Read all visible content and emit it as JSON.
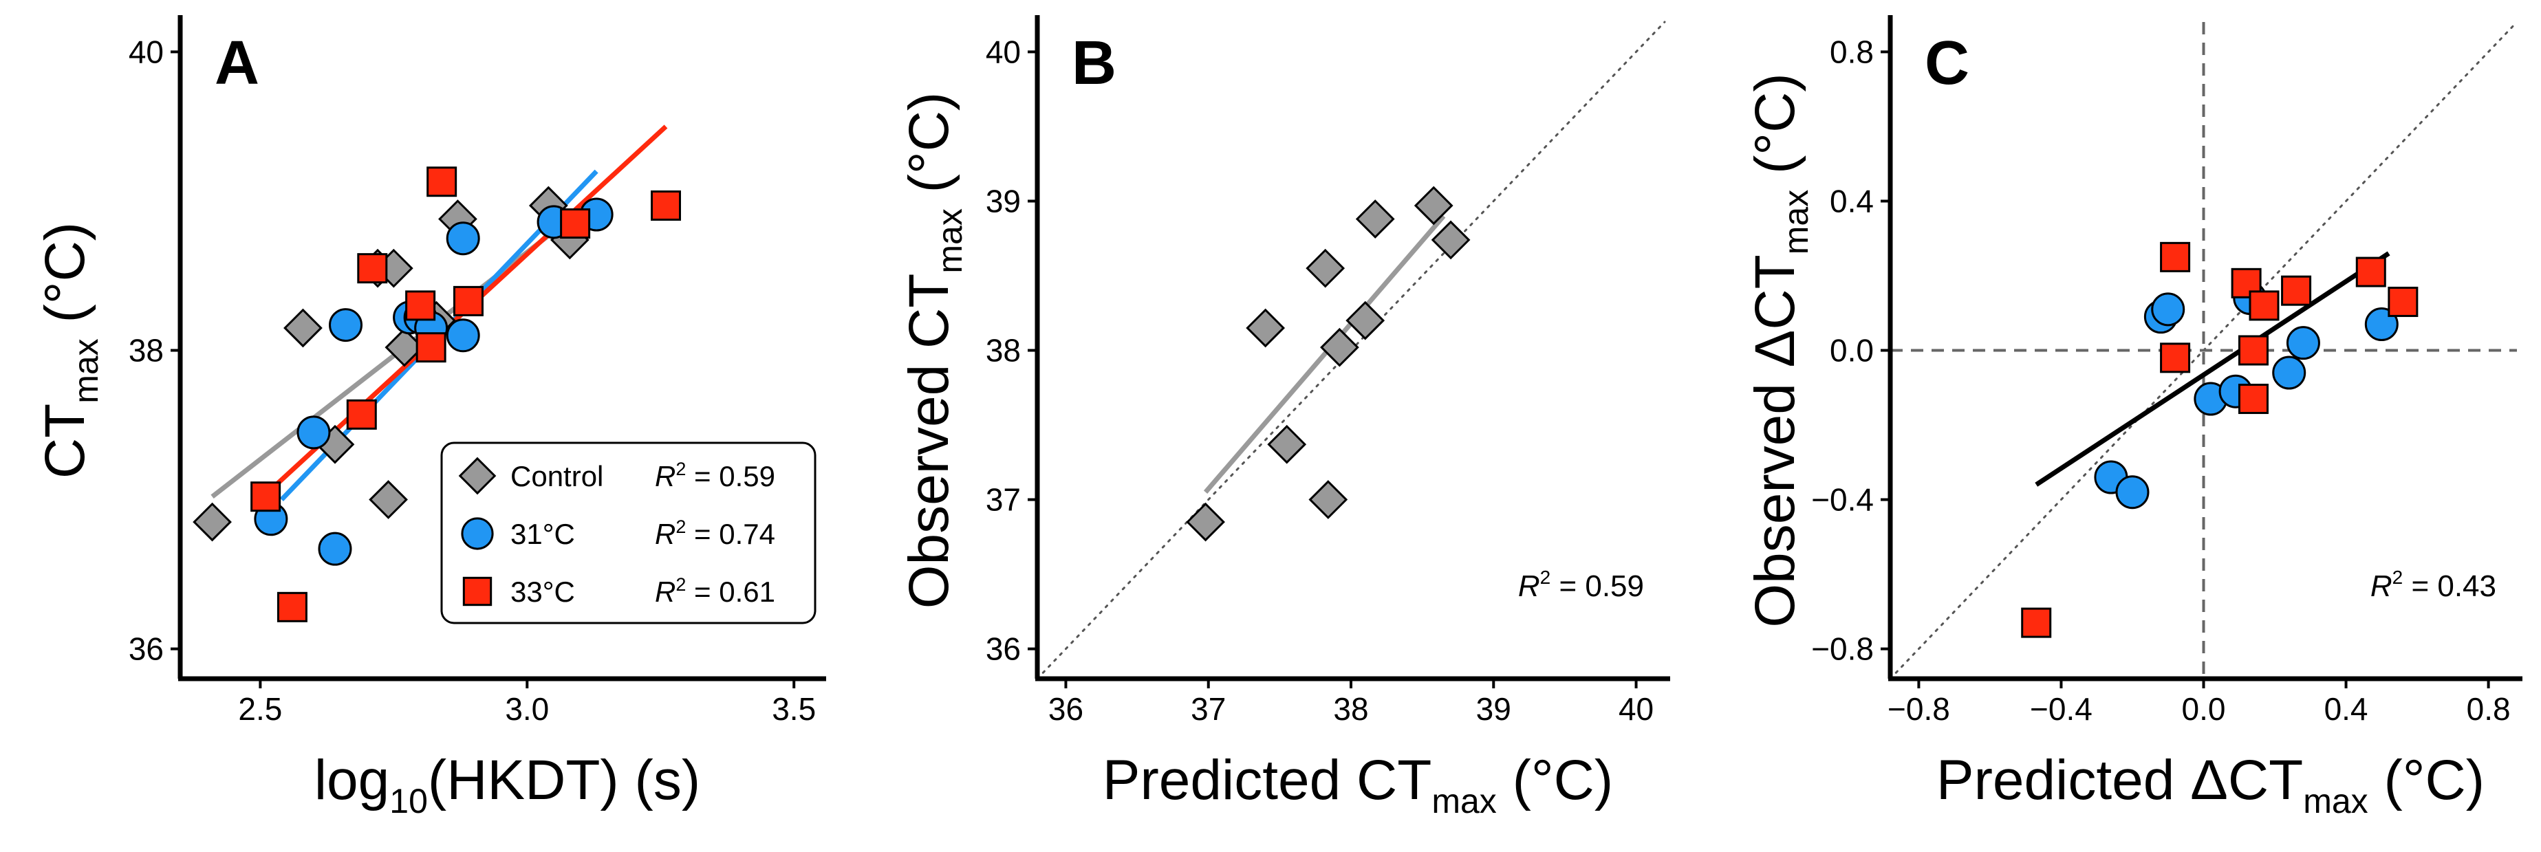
{
  "colors": {
    "control": "#999999",
    "t31": "#2196F3",
    "t33": "#FF2A0D",
    "markerStroke": "#000000",
    "fit_overall": "#000000"
  },
  "chart_data": [
    {
      "panel": "A",
      "type": "scatter",
      "xlabel": {
        "main": "log",
        "sub": "10",
        "rest": "(HKDT) (s)"
      },
      "ylabel": {
        "main": "CT",
        "sub": "max",
        "rest": " (°C)"
      },
      "xlim": [
        2.35,
        3.55
      ],
      "ylim": [
        35.8,
        40.2
      ],
      "xticks": [
        2.5,
        3.0,
        3.5
      ],
      "xticklabels": [
        "2.5",
        "3.0",
        "3.5"
      ],
      "yticks": [
        36,
        38,
        40
      ],
      "yticklabels": [
        "36",
        "38",
        "40"
      ],
      "legend": [
        {
          "label": "Control",
          "r2_label": "R",
          "r2_text": " = 0.59"
        },
        {
          "label": "31°C",
          "r2_label": "R",
          "r2_text": " = 0.74"
        },
        {
          "label": "33°C",
          "r2_label": "R",
          "r2_text": " = 0.61"
        }
      ],
      "series": [
        {
          "name": "Control",
          "marker": "diamond",
          "x": [
            2.41,
            2.58,
            2.64,
            2.72,
            2.74,
            2.75,
            2.77,
            2.83,
            2.87,
            3.04,
            3.08
          ],
          "y": [
            36.85,
            38.15,
            37.37,
            38.55,
            37.0,
            38.55,
            38.02,
            38.2,
            38.88,
            38.97,
            38.74
          ],
          "fit": {
            "x": [
              2.41,
              3.08
            ],
            "y": [
              37.02,
              38.88
            ]
          }
        },
        {
          "name": "31°C",
          "marker": "circle",
          "x": [
            2.52,
            2.6,
            2.64,
            2.66,
            2.78,
            2.8,
            2.82,
            2.88,
            2.88,
            3.05,
            3.13
          ],
          "y": [
            36.87,
            37.45,
            36.67,
            38.17,
            38.22,
            38.22,
            38.15,
            38.75,
            38.1,
            38.86,
            38.91
          ],
          "fit": {
            "x": [
              2.54,
              3.13
            ],
            "y": [
              37.0,
              39.2
            ]
          }
        },
        {
          "name": "33°C",
          "marker": "square",
          "x": [
            2.51,
            2.56,
            2.69,
            2.71,
            2.8,
            2.82,
            2.84,
            2.89,
            3.09,
            3.26
          ],
          "y": [
            37.02,
            36.28,
            37.57,
            38.55,
            38.3,
            38.02,
            39.13,
            38.33,
            38.85,
            38.97
          ],
          "fit": {
            "x": [
              2.53,
              3.26
            ],
            "y": [
              37.1,
              39.5
            ]
          }
        }
      ]
    },
    {
      "panel": "B",
      "type": "scatter",
      "xlabel": {
        "main": "Predicted CT",
        "sub": "max",
        "rest": " (°C)"
      },
      "ylabel": {
        "main": "Observed CT",
        "sub": "max",
        "rest": " (°C)"
      },
      "xlim": [
        35.8,
        40.2
      ],
      "ylim": [
        35.8,
        40.2
      ],
      "xticks": [
        36,
        37,
        38,
        39,
        40
      ],
      "xticklabels": [
        "36",
        "37",
        "38",
        "39",
        "40"
      ],
      "yticks": [
        36,
        37,
        38,
        39,
        40
      ],
      "yticklabels": [
        "36",
        "37",
        "38",
        "39",
        "40"
      ],
      "r2": {
        "label": "R",
        "text": " = 0.59"
      },
      "series": [
        {
          "name": "Control",
          "marker": "diamond",
          "x": [
            36.98,
            37.4,
            37.55,
            37.82,
            37.84,
            37.92,
            38.1,
            38.17,
            38.58,
            38.7
          ],
          "y": [
            36.85,
            38.15,
            37.37,
            38.55,
            37.0,
            38.02,
            38.2,
            38.88,
            38.97,
            38.74
          ],
          "fit": {
            "x": [
              36.98,
              38.65
            ],
            "y": [
              37.05,
              38.9
            ]
          }
        }
      ]
    },
    {
      "panel": "C",
      "type": "scatter",
      "xlabel": {
        "main": "Predicted ΔCT",
        "sub": "max",
        "rest": " (°C)"
      },
      "ylabel": {
        "main": "Observed ΔCT",
        "sub": "max",
        "rest": " (°C)"
      },
      "xlim": [
        -0.88,
        0.88
      ],
      "ylim": [
        -0.88,
        0.88
      ],
      "xticks": [
        -0.8,
        -0.4,
        0.0,
        0.4,
        0.8
      ],
      "xticklabels": [
        "−0.8",
        "−0.4",
        "0.0",
        "0.4",
        "0.8"
      ],
      "yticks": [
        -0.8,
        -0.4,
        0.0,
        0.4,
        0.8
      ],
      "yticklabels": [
        "−0.8",
        "−0.4",
        "0.0",
        "0.4",
        "0.8"
      ],
      "r2": {
        "label": "R",
        "text": " = 0.43"
      },
      "series": [
        {
          "name": "31°C",
          "marker": "circle",
          "x": [
            -0.26,
            -0.2,
            -0.12,
            -0.1,
            0.02,
            0.09,
            0.13,
            0.24,
            0.28,
            0.5
          ],
          "y": [
            -0.34,
            -0.38,
            0.09,
            0.11,
            -0.13,
            -0.11,
            0.14,
            -0.06,
            0.02,
            0.07
          ]
        },
        {
          "name": "33°C",
          "marker": "square",
          "x": [
            -0.47,
            -0.08,
            -0.08,
            0.12,
            0.14,
            0.14,
            0.17,
            0.26,
            0.47,
            0.56
          ],
          "y": [
            -0.73,
            0.25,
            -0.02,
            0.18,
            0.0,
            -0.13,
            0.12,
            0.16,
            0.21,
            0.13
          ]
        }
      ],
      "fit": {
        "x": [
          -0.47,
          0.52
        ],
        "y": [
          -0.36,
          0.26
        ]
      }
    }
  ]
}
